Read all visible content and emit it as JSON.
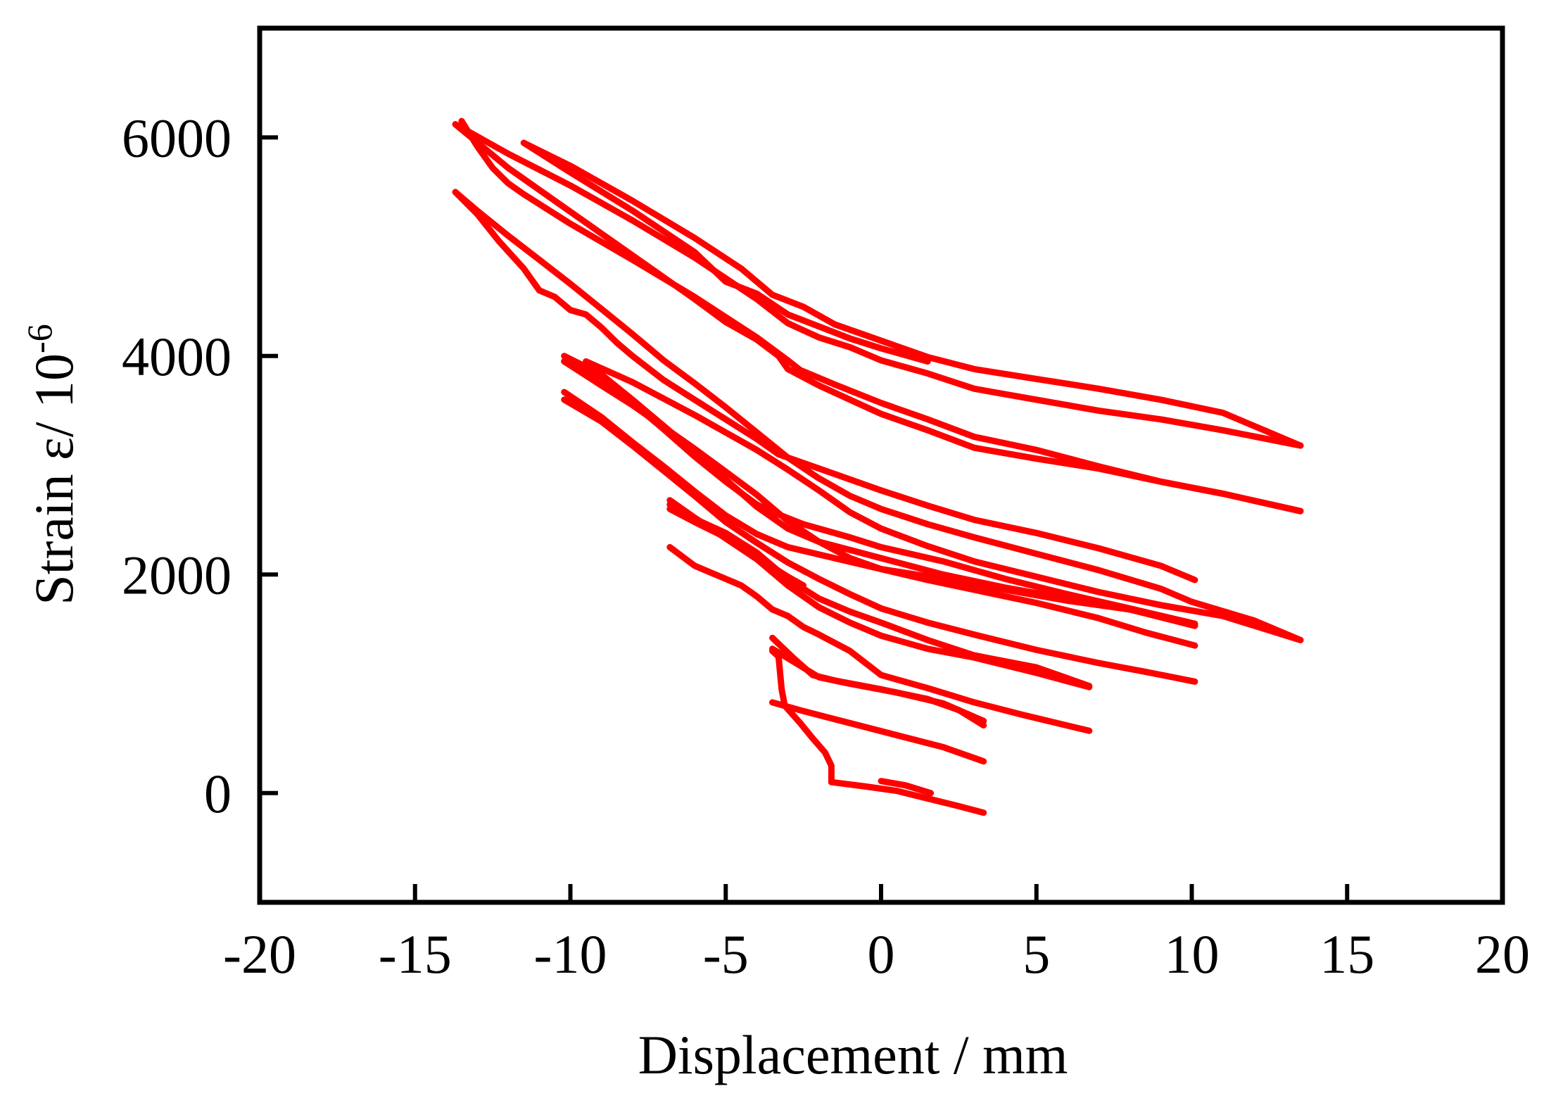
{
  "chart_data": {
    "type": "line",
    "xlabel": "Displacement / mm",
    "ylabel_main": "Strain ε/ 10",
    "ylabel_exponent": "-6",
    "xlim": [
      -20,
      20
    ],
    "ylim": [
      -1000,
      7000
    ],
    "xticks": [
      -20,
      -15,
      -10,
      -5,
      0,
      5,
      10,
      15,
      20
    ],
    "yticks": [
      0,
      2000,
      4000,
      6000
    ],
    "xtick_labels": [
      "-20",
      "-15",
      "-10",
      "-5",
      "0",
      "5",
      "10",
      "15",
      "20"
    ],
    "ytick_labels": [
      "0",
      "2000",
      "4000",
      "6000"
    ],
    "grid": false,
    "legend": "none",
    "line_color": "#ff0000",
    "series": [
      {
        "points": [
          [
            -1.6,
            100
          ],
          [
            -0.5,
            60
          ],
          [
            0.5,
            20
          ],
          [
            1.5,
            -50
          ],
          [
            2.5,
            -120
          ],
          [
            3.3,
            -180
          ]
        ]
      },
      {
        "points": [
          [
            0,
            110
          ],
          [
            0.8,
            70
          ],
          [
            1.6,
            0
          ]
        ]
      },
      {
        "points": [
          [
            -1.6,
            100
          ],
          [
            -1.6,
            250
          ],
          [
            -1.8,
            370
          ],
          [
            -2.2,
            500
          ],
          [
            -2.6,
            640
          ],
          [
            -3.1,
            800
          ],
          [
            -3.2,
            950
          ],
          [
            -3.3,
            1250
          ],
          [
            -3.5,
            1300
          ]
        ]
      },
      {
        "points": [
          [
            -3.5,
            830
          ],
          [
            -2.5,
            750
          ],
          [
            -1,
            640
          ],
          [
            0.5,
            530
          ],
          [
            2,
            420
          ],
          [
            3.3,
            290
          ]
        ]
      },
      {
        "points": [
          [
            -3.5,
            1420
          ],
          [
            -2.8,
            1230
          ],
          [
            -2.2,
            1080
          ],
          [
            -1.5,
            1030
          ],
          [
            0,
            950
          ],
          [
            1.5,
            860
          ],
          [
            2.5,
            760
          ],
          [
            3.3,
            620
          ]
        ]
      },
      {
        "points": [
          [
            -3.5,
            1320
          ],
          [
            -2.8,
            1200
          ],
          [
            -2,
            1060
          ],
          [
            -1,
            1000
          ],
          [
            0.5,
            920
          ],
          [
            2,
            820
          ],
          [
            3.3,
            660
          ]
        ]
      },
      {
        "points": [
          [
            -6.8,
            2250
          ],
          [
            -6,
            2080
          ],
          [
            -5,
            1960
          ],
          [
            -4.5,
            1900
          ],
          [
            -4,
            1800
          ],
          [
            -3.5,
            1680
          ],
          [
            -3,
            1620
          ],
          [
            -2.5,
            1520
          ],
          [
            -2,
            1450
          ],
          [
            -1,
            1300
          ],
          [
            0,
            1080
          ],
          [
            1.5,
            960
          ],
          [
            3,
            830
          ],
          [
            4.5,
            720
          ],
          [
            6.7,
            570
          ]
        ]
      },
      {
        "points": [
          [
            -6.8,
            2680
          ],
          [
            -6,
            2520
          ],
          [
            -5,
            2330
          ],
          [
            -4,
            2140
          ],
          [
            -3,
            1900
          ],
          [
            -2,
            1700
          ],
          [
            -1,
            1560
          ],
          [
            0,
            1440
          ],
          [
            1.5,
            1320
          ],
          [
            3,
            1240
          ],
          [
            5,
            1100
          ],
          [
            6.7,
            970
          ]
        ]
      },
      {
        "points": [
          [
            -6.8,
            2640
          ],
          [
            -6,
            2510
          ],
          [
            -5,
            2380
          ],
          [
            -4,
            2200
          ],
          [
            -3,
            1960
          ],
          [
            -2,
            1780
          ],
          [
            -1,
            1660
          ],
          [
            0,
            1560
          ],
          [
            1.5,
            1400
          ],
          [
            3,
            1260
          ],
          [
            5,
            1150
          ],
          [
            6.7,
            980
          ]
        ]
      },
      {
        "points": [
          [
            -6.8,
            2600
          ],
          [
            -6,
            2480
          ],
          [
            -5,
            2340
          ],
          [
            -4.5,
            2260
          ],
          [
            -4,
            2160
          ],
          [
            -3.5,
            2070
          ],
          [
            -3,
            1980
          ],
          [
            -2.5,
            1900
          ]
        ]
      },
      {
        "points": [
          [
            -10.2,
            3670
          ],
          [
            -9,
            3440
          ],
          [
            -8,
            3210
          ],
          [
            -7,
            2990
          ],
          [
            -6,
            2760
          ],
          [
            -5,
            2540
          ],
          [
            -4,
            2370
          ],
          [
            -3,
            2250
          ],
          [
            -1.5,
            2150
          ],
          [
            0,
            2050
          ],
          [
            1.5,
            1950
          ],
          [
            3,
            1860
          ],
          [
            5,
            1740
          ],
          [
            7,
            1600
          ],
          [
            8.5,
            1470
          ],
          [
            10.1,
            1350
          ]
        ]
      },
      {
        "points": [
          [
            -10.2,
            3600
          ],
          [
            -9,
            3400
          ],
          [
            -8,
            3180
          ],
          [
            -7,
            2950
          ],
          [
            -6,
            2720
          ],
          [
            -5,
            2480
          ],
          [
            -4,
            2290
          ],
          [
            -3,
            2110
          ],
          [
            -2,
            1960
          ],
          [
            -1,
            1820
          ],
          [
            0,
            1690
          ],
          [
            1.5,
            1560
          ],
          [
            3,
            1450
          ],
          [
            5,
            1310
          ],
          [
            7,
            1190
          ],
          [
            8.5,
            1110
          ],
          [
            10.1,
            1020
          ]
        ]
      },
      {
        "points": [
          [
            -10.2,
            4000
          ],
          [
            -9,
            3830
          ],
          [
            -8,
            3600
          ],
          [
            -7,
            3360
          ],
          [
            -6,
            3120
          ],
          [
            -5,
            2870
          ],
          [
            -4,
            2620
          ],
          [
            -3,
            2420
          ],
          [
            -2,
            2300
          ],
          [
            0,
            2150
          ],
          [
            2,
            2000
          ],
          [
            4,
            1880
          ],
          [
            6,
            1780
          ],
          [
            8,
            1680
          ],
          [
            10.1,
            1530
          ]
        ]
      },
      {
        "points": [
          [
            -10.2,
            3950
          ],
          [
            -9,
            3800
          ],
          [
            -8,
            3570
          ],
          [
            -7,
            3330
          ],
          [
            -6,
            3080
          ],
          [
            -5,
            2850
          ],
          [
            -4,
            2640
          ],
          [
            -3.3,
            2550
          ],
          [
            -2.5,
            2460
          ],
          [
            -1,
            2340
          ],
          [
            0,
            2250
          ],
          [
            2,
            2120
          ],
          [
            4,
            1960
          ],
          [
            6,
            1820
          ],
          [
            8,
            1690
          ],
          [
            10.1,
            1550
          ]
        ]
      },
      {
        "points": [
          [
            -10.2,
            3950
          ],
          [
            -9,
            3730
          ],
          [
            -8,
            3550
          ],
          [
            -7,
            3350
          ],
          [
            -6,
            3150
          ],
          [
            -5,
            2940
          ],
          [
            -4,
            2730
          ],
          [
            -3,
            2490
          ],
          [
            -2,
            2300
          ],
          [
            -1,
            2150
          ],
          [
            0,
            2050
          ],
          [
            2,
            1960
          ],
          [
            4,
            1860
          ],
          [
            6,
            1760
          ],
          [
            8,
            1680
          ],
          [
            10.1,
            1540
          ]
        ]
      },
      {
        "points": [
          [
            -9.5,
            3950
          ],
          [
            -8,
            3760
          ],
          [
            -6,
            3460
          ],
          [
            -4,
            3140
          ],
          [
            -3,
            2960
          ],
          [
            -2,
            2770
          ],
          [
            -1,
            2570
          ],
          [
            0,
            2420
          ],
          [
            1.5,
            2260
          ],
          [
            3,
            2120
          ],
          [
            5,
            1980
          ],
          [
            7,
            1840
          ],
          [
            9,
            1720
          ],
          [
            11,
            1620
          ],
          [
            13.5,
            1400
          ]
        ]
      },
      {
        "points": [
          [
            -13.7,
            5500
          ],
          [
            -13,
            5330
          ],
          [
            -12,
            5100
          ],
          [
            -11,
            4880
          ],
          [
            -10,
            4660
          ],
          [
            -9,
            4430
          ],
          [
            -8,
            4200
          ],
          [
            -7,
            3960
          ],
          [
            -6,
            3750
          ],
          [
            -5,
            3530
          ],
          [
            -4,
            3300
          ],
          [
            -3,
            3070
          ],
          [
            -2,
            2880
          ],
          [
            -1,
            2720
          ],
          [
            0,
            2600
          ],
          [
            1.5,
            2460
          ],
          [
            3,
            2340
          ],
          [
            5,
            2190
          ],
          [
            7,
            2040
          ],
          [
            9,
            1870
          ],
          [
            10,
            1750
          ],
          [
            12,
            1580
          ],
          [
            13.5,
            1400
          ]
        ]
      },
      {
        "points": [
          [
            -13.7,
            5500
          ],
          [
            -13,
            5300
          ],
          [
            -12.3,
            5050
          ],
          [
            -11.5,
            4800
          ],
          [
            -11,
            4600
          ],
          [
            -10.5,
            4540
          ],
          [
            -10,
            4420
          ],
          [
            -9.5,
            4380
          ],
          [
            -9,
            4260
          ],
          [
            -8.5,
            4120
          ],
          [
            -8,
            4000
          ],
          [
            -7,
            3780
          ],
          [
            -6,
            3600
          ],
          [
            -5,
            3420
          ],
          [
            -4,
            3240
          ],
          [
            -3.3,
            3100
          ],
          [
            -2.5,
            3020
          ],
          [
            -1.5,
            2920
          ],
          [
            0,
            2770
          ],
          [
            1.5,
            2630
          ],
          [
            3,
            2500
          ],
          [
            5,
            2380
          ],
          [
            7,
            2240
          ],
          [
            9,
            2080
          ],
          [
            10.1,
            1950
          ]
        ]
      },
      {
        "points": [
          [
            -13.7,
            6120
          ],
          [
            -12,
            5850
          ],
          [
            -10,
            5560
          ],
          [
            -8,
            5240
          ],
          [
            -6,
            4900
          ],
          [
            -4,
            4520
          ],
          [
            -3,
            4300
          ],
          [
            -2,
            4170
          ],
          [
            -1,
            4080
          ],
          [
            0,
            3960
          ],
          [
            1.5,
            3840
          ],
          [
            3,
            3700
          ],
          [
            5,
            3600
          ],
          [
            7,
            3500
          ],
          [
            9,
            3420
          ],
          [
            11,
            3320
          ],
          [
            13.5,
            3180
          ]
        ]
      },
      {
        "points": [
          [
            -13.5,
            6150
          ],
          [
            -13,
            5920
          ],
          [
            -12.5,
            5720
          ],
          [
            -12,
            5580
          ],
          [
            -11.5,
            5480
          ],
          [
            -10,
            5210
          ],
          [
            -8,
            4880
          ],
          [
            -6,
            4540
          ],
          [
            -4,
            4170
          ],
          [
            -3,
            3960
          ],
          [
            -2.6,
            3870
          ],
          [
            -1.5,
            3740
          ],
          [
            0,
            3570
          ],
          [
            1.5,
            3420
          ],
          [
            3,
            3260
          ],
          [
            5,
            3140
          ],
          [
            7,
            2990
          ],
          [
            9,
            2850
          ],
          [
            11,
            2740
          ],
          [
            13.5,
            2580
          ]
        ]
      },
      {
        "points": [
          [
            -11.5,
            5950
          ],
          [
            -10,
            5740
          ],
          [
            -8,
            5420
          ],
          [
            -6,
            5080
          ],
          [
            -4.5,
            4800
          ],
          [
            -3.5,
            4560
          ],
          [
            -2.5,
            4450
          ],
          [
            -1.5,
            4290
          ],
          [
            0,
            4140
          ],
          [
            1.5,
            3990
          ],
          [
            3,
            3880
          ],
          [
            5,
            3790
          ],
          [
            7,
            3700
          ],
          [
            9,
            3600
          ],
          [
            11,
            3480
          ],
          [
            13.5,
            3180
          ]
        ]
      },
      {
        "points": [
          [
            -11.5,
            5950
          ],
          [
            -10,
            5680
          ],
          [
            -8,
            5330
          ],
          [
            -6,
            4950
          ],
          [
            -5,
            4680
          ],
          [
            -4,
            4570
          ],
          [
            -3,
            4380
          ],
          [
            -2,
            4270
          ],
          [
            -1,
            4160
          ],
          [
            0,
            4070
          ],
          [
            1.5,
            3950
          ]
        ]
      },
      {
        "points": [
          [
            -13.7,
            6120
          ],
          [
            -12,
            5720
          ],
          [
            -10,
            5320
          ],
          [
            -8,
            4920
          ],
          [
            -6,
            4520
          ],
          [
            -5,
            4310
          ],
          [
            -4,
            4150
          ],
          [
            -3.3,
            4000
          ],
          [
            -3,
            3880
          ],
          [
            -2,
            3730
          ],
          [
            -1,
            3600
          ],
          [
            0,
            3470
          ],
          [
            1.5,
            3320
          ],
          [
            3,
            3160
          ],
          [
            5,
            3060
          ],
          [
            7,
            2970
          ],
          [
            9,
            2850
          ],
          [
            11,
            2740
          ],
          [
            13.5,
            2580
          ]
        ]
      }
    ]
  }
}
